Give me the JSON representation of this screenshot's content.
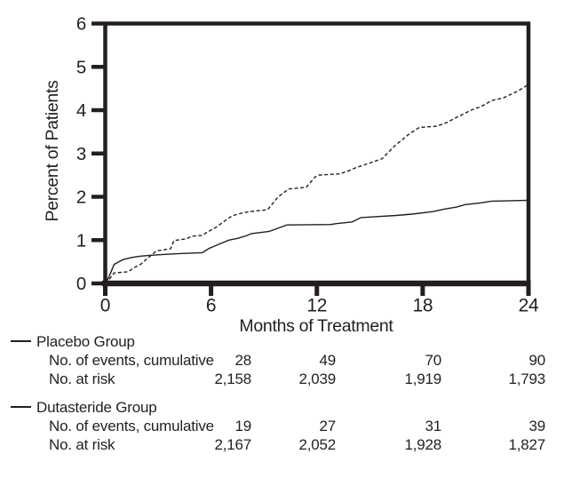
{
  "colors": {
    "ink": "#231f20",
    "background": "#ffffff"
  },
  "chart_data": {
    "type": "line",
    "title": "",
    "xlabel": "Months of Treatment",
    "ylabel": "Percent of Patients",
    "xlim": [
      0,
      24
    ],
    "ylim": [
      0,
      6
    ],
    "x_ticks": [
      0,
      6,
      12,
      18,
      24
    ],
    "y_ticks": [
      0,
      1,
      2,
      3,
      4,
      5,
      6
    ],
    "grid": false,
    "frame": "box",
    "legend_position": "below-left",
    "series": [
      {
        "name": "Placebo Group",
        "style": "dashed",
        "points": [
          [
            0,
            0
          ],
          [
            0.2,
            0.08
          ],
          [
            0.5,
            0.24
          ],
          [
            1.3,
            0.27
          ],
          [
            1.7,
            0.38
          ],
          [
            2.0,
            0.44
          ],
          [
            2.4,
            0.58
          ],
          [
            2.9,
            0.75
          ],
          [
            3.7,
            0.8
          ],
          [
            3.9,
            0.99
          ],
          [
            4.6,
            1.03
          ],
          [
            4.9,
            1.09
          ],
          [
            5.5,
            1.11
          ],
          [
            5.8,
            1.19
          ],
          [
            6.3,
            1.3
          ],
          [
            6.8,
            1.45
          ],
          [
            7.2,
            1.56
          ],
          [
            7.7,
            1.62
          ],
          [
            8.2,
            1.66
          ],
          [
            9.2,
            1.7
          ],
          [
            9.8,
            2.0
          ],
          [
            10.4,
            2.18
          ],
          [
            11.4,
            2.22
          ],
          [
            11.9,
            2.46
          ],
          [
            12.1,
            2.5
          ],
          [
            13.3,
            2.53
          ],
          [
            13.8,
            2.6
          ],
          [
            14.2,
            2.67
          ],
          [
            15.0,
            2.78
          ],
          [
            15.7,
            2.88
          ],
          [
            16.4,
            3.17
          ],
          [
            17.2,
            3.44
          ],
          [
            17.8,
            3.6
          ],
          [
            18.8,
            3.63
          ],
          [
            19.4,
            3.72
          ],
          [
            19.8,
            3.81
          ],
          [
            20.8,
            4.01
          ],
          [
            21.3,
            4.08
          ],
          [
            21.9,
            4.22
          ],
          [
            22.6,
            4.29
          ],
          [
            23.4,
            4.44
          ],
          [
            24,
            4.59
          ]
        ]
      },
      {
        "name": "Dutasteride Group",
        "style": "solid",
        "points": [
          [
            0,
            0
          ],
          [
            0.15,
            0.1
          ],
          [
            0.3,
            0.24
          ],
          [
            0.5,
            0.44
          ],
          [
            1.0,
            0.55
          ],
          [
            1.5,
            0.6
          ],
          [
            2.0,
            0.63
          ],
          [
            2.6,
            0.65
          ],
          [
            3.4,
            0.67
          ],
          [
            4.2,
            0.69
          ],
          [
            5.5,
            0.71
          ],
          [
            5.9,
            0.81
          ],
          [
            6.3,
            0.88
          ],
          [
            7.0,
            1.0
          ],
          [
            7.5,
            1.04
          ],
          [
            8.0,
            1.1
          ],
          [
            8.3,
            1.15
          ],
          [
            9.3,
            1.2
          ],
          [
            10.3,
            1.35
          ],
          [
            12.8,
            1.36
          ],
          [
            13.1,
            1.38
          ],
          [
            14.0,
            1.42
          ],
          [
            14.5,
            1.52
          ],
          [
            15.3,
            1.54
          ],
          [
            16.5,
            1.57
          ],
          [
            17.4,
            1.6
          ],
          [
            18.6,
            1.66
          ],
          [
            19.3,
            1.72
          ],
          [
            19.9,
            1.76
          ],
          [
            20.4,
            1.82
          ],
          [
            21.3,
            1.86
          ],
          [
            21.9,
            1.9
          ],
          [
            23.0,
            1.91
          ],
          [
            24,
            1.92
          ]
        ]
      }
    ]
  },
  "table": {
    "columns_months": [
      "6",
      "12",
      "18",
      "24"
    ],
    "groups": [
      {
        "legend": "Placebo Group",
        "rows": [
          {
            "label": "No. of events, cumulative",
            "values": [
              "28",
              "49",
              "70",
              "90"
            ]
          },
          {
            "label": "No. at risk",
            "values": [
              "2,158",
              "2,039",
              "1,919",
              "1,793"
            ]
          }
        ]
      },
      {
        "legend": "Dutasteride Group",
        "rows": [
          {
            "label": "No. of events, cumulative",
            "values": [
              "19",
              "27",
              "31",
              "39"
            ]
          },
          {
            "label": "No. at risk",
            "values": [
              "2,167",
              "2,052",
              "1,928",
              "1,827"
            ]
          }
        ]
      }
    ]
  }
}
